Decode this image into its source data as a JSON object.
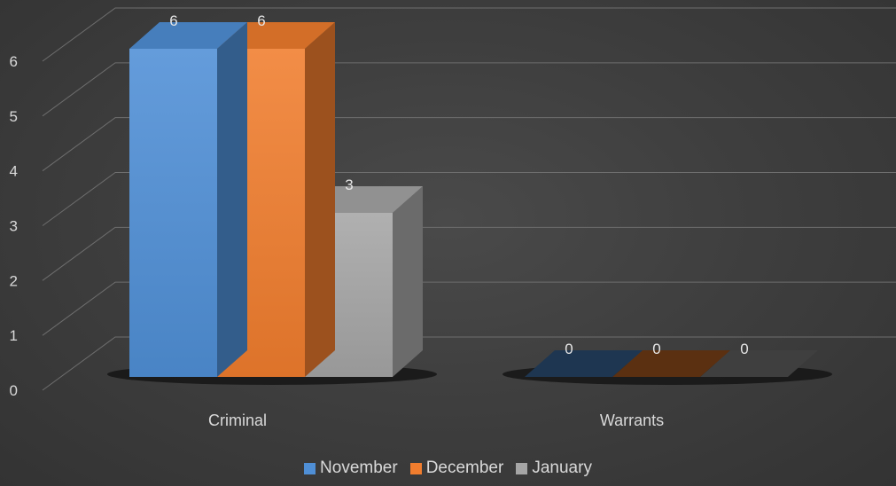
{
  "chart_data": {
    "type": "bar",
    "subtype": "3d-clustered-column",
    "title": "",
    "xlabel": "",
    "ylabel": "",
    "categories": [
      "Criminal",
      "Warrants"
    ],
    "series": [
      {
        "name": "November",
        "values": [
          6,
          0
        ],
        "color": "#4f8fd6"
      },
      {
        "name": "December",
        "values": [
          6,
          0
        ],
        "color": "#f07d2e"
      },
      {
        "name": "January",
        "values": [
          3,
          0
        ],
        "color": "#a5a5a5"
      }
    ],
    "ylim": [
      0,
      6
    ],
    "yticks": [
      0,
      1,
      2,
      3,
      4,
      5,
      6
    ],
    "grid": true,
    "data_labels": true,
    "legend": "bottom",
    "background": "#3f3f3f"
  }
}
